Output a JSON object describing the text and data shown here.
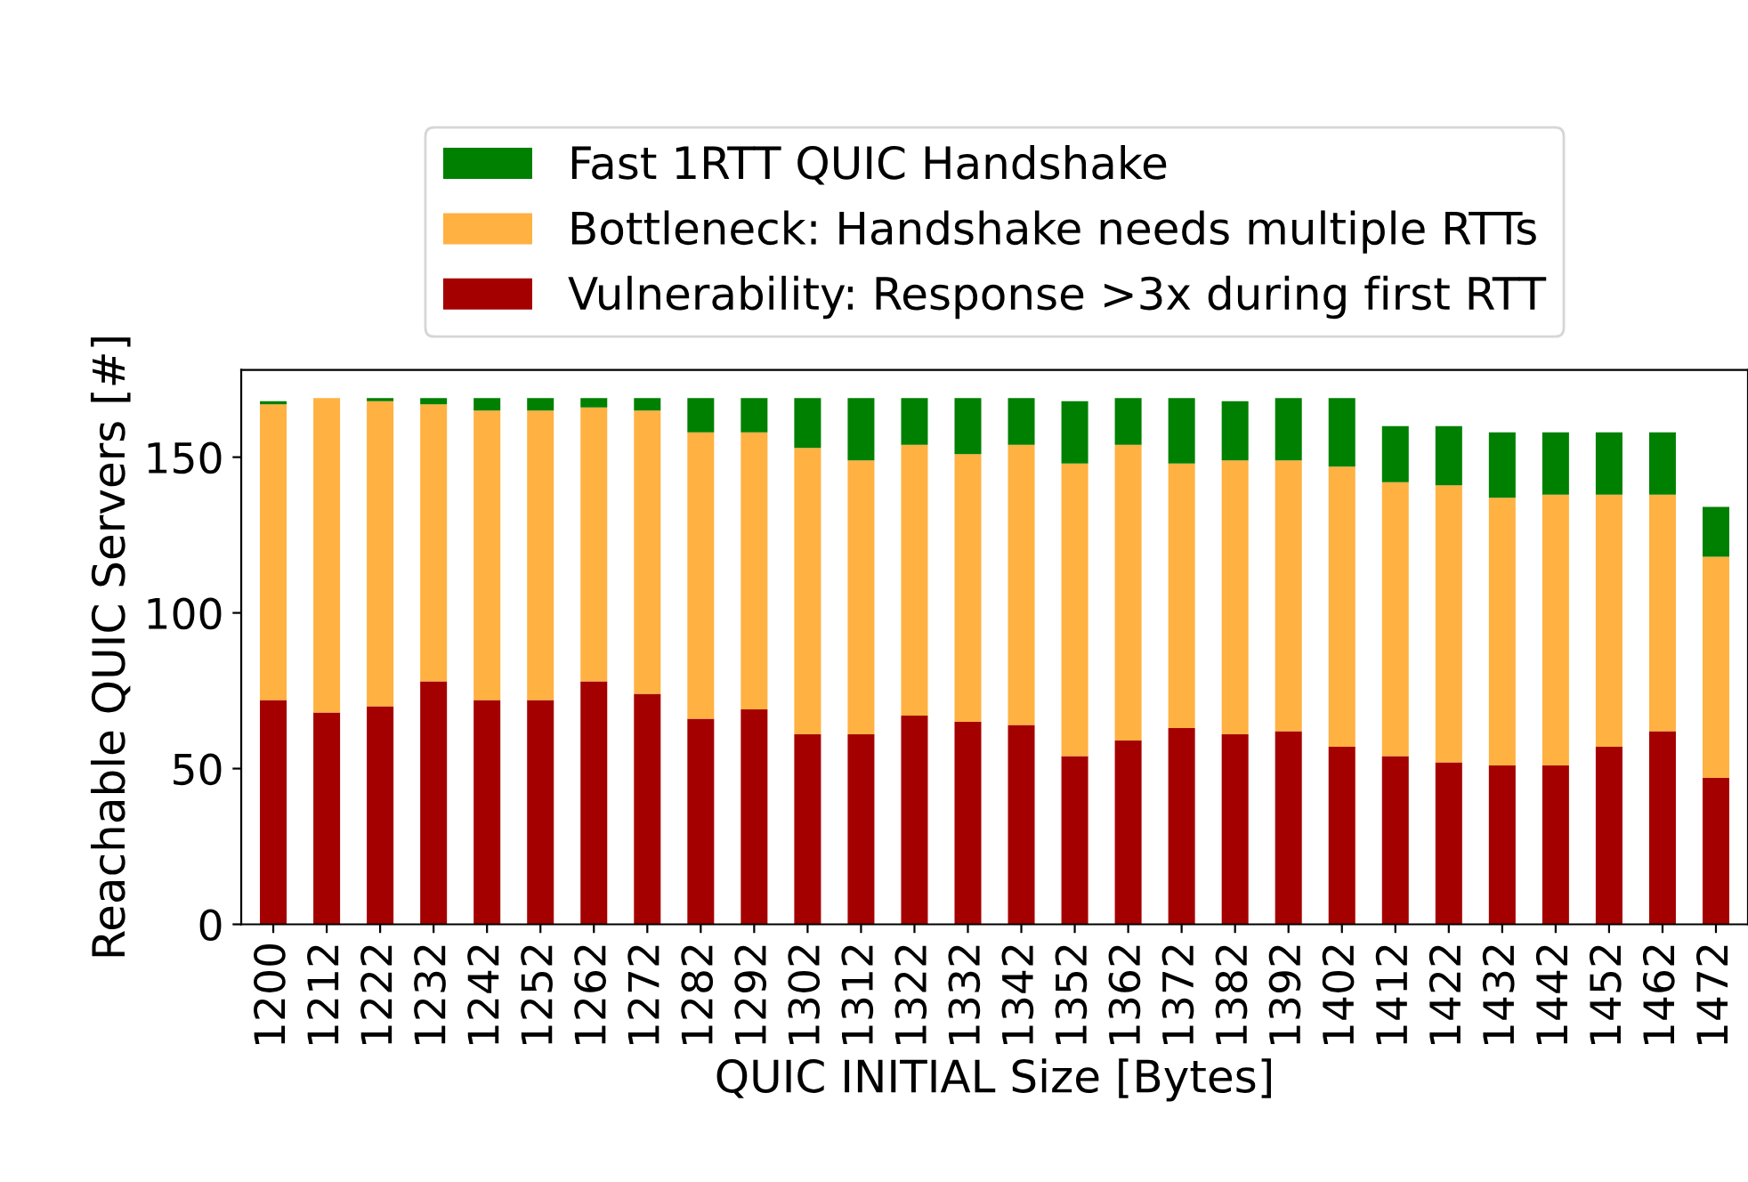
{
  "chart_data": {
    "type": "bar",
    "stacked": true,
    "xlabel": "QUIC INITIAL Size [Bytes]",
    "ylabel": "Reachable QUIC Servers [#]",
    "categories": [
      "1200",
      "1212",
      "1222",
      "1232",
      "1242",
      "1252",
      "1262",
      "1272",
      "1282",
      "1292",
      "1302",
      "1312",
      "1322",
      "1332",
      "1342",
      "1352",
      "1362",
      "1372",
      "1382",
      "1392",
      "1402",
      "1412",
      "1422",
      "1432",
      "1442",
      "1452",
      "1462",
      "1472"
    ],
    "series": [
      {
        "name": "Vulnerability: Response >3x during first RTT",
        "color": "#a50000",
        "values": [
          72,
          68,
          70,
          78,
          72,
          72,
          78,
          74,
          66,
          69,
          61,
          61,
          67,
          65,
          64,
          54,
          59,
          63,
          61,
          62,
          57,
          54,
          52,
          51,
          51,
          57,
          62,
          47
        ]
      },
      {
        "name": "Bottleneck: Handshake needs multiple RTTs",
        "color": "#ffb142",
        "values": [
          95,
          101,
          98,
          89,
          93,
          93,
          88,
          91,
          92,
          89,
          92,
          88,
          87,
          86,
          90,
          94,
          95,
          85,
          88,
          87,
          90,
          88,
          89,
          86,
          87,
          81,
          76,
          71
        ]
      },
      {
        "name": "Fast 1RTT QUIC Handshake",
        "color": "#008000",
        "values": [
          1,
          0,
          1,
          2,
          4,
          4,
          3,
          4,
          11,
          11,
          16,
          20,
          15,
          18,
          15,
          20,
          15,
          21,
          19,
          20,
          22,
          18,
          19,
          21,
          20,
          20,
          20,
          16
        ]
      }
    ],
    "ylim": [
      0,
      178
    ],
    "yticks": [
      0,
      50,
      100,
      150
    ],
    "grid": false,
    "legend": "top"
  }
}
